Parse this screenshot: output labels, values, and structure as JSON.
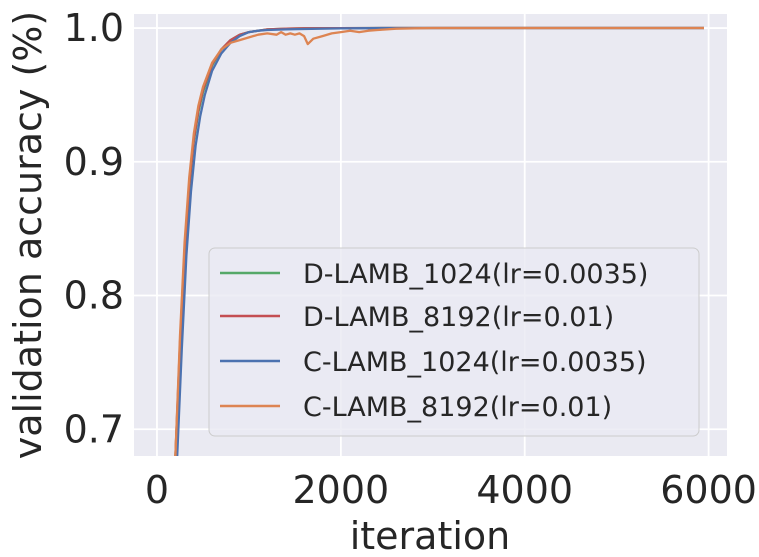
{
  "chart_data": {
    "type": "line",
    "title": "",
    "xlabel": "iteration",
    "ylabel": "validation accuracy (%)",
    "xlim": [
      -250,
      6200
    ],
    "ylim": [
      0.68,
      1.0105
    ],
    "xticks": [
      0,
      2000,
      4000,
      6000
    ],
    "xtick_labels": [
      "0",
      "2000",
      "4000",
      "6000"
    ],
    "yticks": [
      0.7,
      0.8,
      0.9,
      1.0
    ],
    "ytick_labels": [
      "0.7",
      "0.8",
      "0.9",
      "1.0"
    ],
    "grid": true,
    "legend_position": "lower-right",
    "colors": {
      "background": "#eaeaf2",
      "grid": "#ffffff"
    },
    "series": [
      {
        "name": "D-LAMB_1024(lr=0.0035)",
        "color": "#55a868",
        "x": [
          200,
          250,
          300,
          350,
          400,
          450,
          500,
          600,
          700,
          800,
          900,
          1000,
          1200,
          1400,
          1600,
          2000,
          2500,
          3000,
          4000,
          5000,
          5950
        ],
        "y": [
          0.68,
          0.76,
          0.83,
          0.88,
          0.915,
          0.937,
          0.952,
          0.972,
          0.984,
          0.991,
          0.995,
          0.997,
          0.999,
          0.9995,
          0.9998,
          0.9999,
          1.0,
          1.0,
          1.0,
          1.0,
          1.0
        ]
      },
      {
        "name": "D-LAMB_8192(lr=0.01)",
        "color": "#c44e52",
        "x": [
          200,
          250,
          300,
          350,
          400,
          450,
          500,
          600,
          700,
          800,
          900,
          1000,
          1200,
          1400,
          1600,
          2000,
          2500,
          3000,
          4000,
          5000,
          5950
        ],
        "y": [
          0.68,
          0.765,
          0.835,
          0.883,
          0.917,
          0.939,
          0.954,
          0.973,
          0.984,
          0.991,
          0.995,
          0.997,
          0.999,
          0.9995,
          0.9998,
          0.9999,
          1.0,
          1.0,
          1.0,
          1.0,
          1.0
        ]
      },
      {
        "name": "C-LAMB_1024(lr=0.0035)",
        "color": "#4c72b0",
        "x": [
          220,
          270,
          320,
          370,
          420,
          470,
          520,
          600,
          700,
          800,
          900,
          1000,
          1100,
          1200,
          1400,
          1600,
          2000,
          2500,
          3000,
          4000,
          5000,
          5950
        ],
        "y": [
          0.68,
          0.76,
          0.83,
          0.878,
          0.912,
          0.934,
          0.95,
          0.968,
          0.981,
          0.989,
          0.994,
          0.997,
          0.998,
          0.9985,
          0.999,
          0.9993,
          0.9997,
          1.0,
          1.0,
          1.0,
          1.0,
          1.0
        ]
      },
      {
        "name": "C-LAMB_8192(lr=0.01)",
        "color": "#dd8452",
        "x": [
          200,
          250,
          300,
          350,
          400,
          450,
          500,
          600,
          700,
          800,
          900,
          1000,
          1100,
          1200,
          1300,
          1350,
          1400,
          1450,
          1500,
          1550,
          1600,
          1640,
          1700,
          1800,
          1900,
          2000,
          2100,
          2200,
          2300,
          2400,
          2500,
          2600,
          2800,
          3000,
          4000,
          5000,
          5950
        ],
        "y": [
          0.68,
          0.77,
          0.84,
          0.888,
          0.921,
          0.942,
          0.956,
          0.974,
          0.984,
          0.989,
          0.991,
          0.993,
          0.995,
          0.996,
          0.995,
          0.997,
          0.995,
          0.996,
          0.995,
          0.996,
          0.994,
          0.988,
          0.992,
          0.994,
          0.996,
          0.997,
          0.998,
          0.997,
          0.998,
          0.9985,
          0.999,
          0.9995,
          0.9998,
          1.0,
          1.0,
          1.0,
          1.0
        ]
      }
    ]
  }
}
